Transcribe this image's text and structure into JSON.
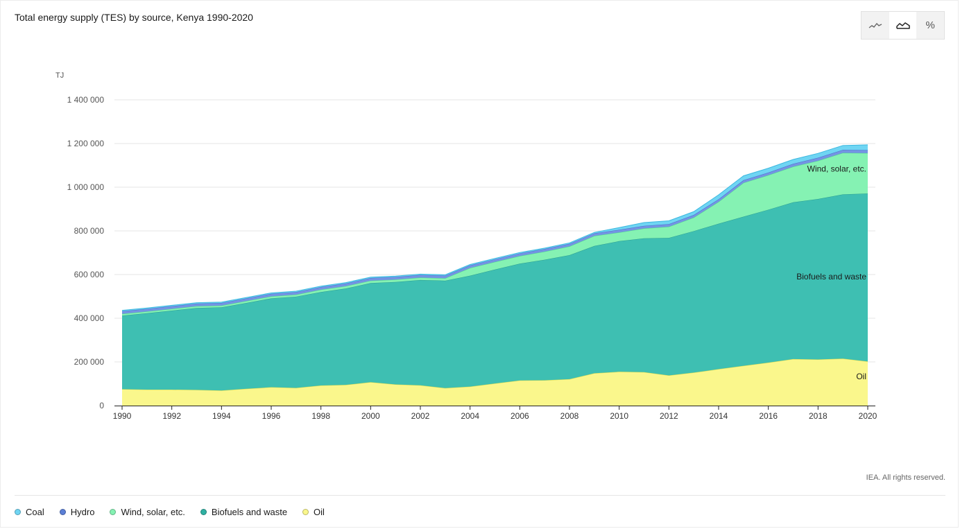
{
  "title": "Total energy supply (TES) by source, Kenya 1990-2020",
  "toggles": [
    {
      "name": "line-chart-icon",
      "active": false
    },
    {
      "name": "area-chart-icon",
      "active": true
    },
    {
      "name": "percent-icon",
      "label": "%",
      "active": false
    }
  ],
  "copyright": "IEA. All rights reserved.",
  "chart_data": {
    "type": "area",
    "stacked": true,
    "title": "Total energy supply (TES) by source, Kenya 1990-2020",
    "ylabel": "TJ",
    "ylim": [
      0,
      1400000
    ],
    "yticks": [
      0,
      200000,
      400000,
      600000,
      800000,
      1000000,
      1200000,
      1400000
    ],
    "ytick_labels": [
      "0",
      "200 000",
      "400 000",
      "600 000",
      "800 000",
      "1 000 000",
      "1 200 000",
      "1 400 000"
    ],
    "xticks": [
      1990,
      1992,
      1994,
      1996,
      1998,
      2000,
      2002,
      2004,
      2006,
      2008,
      2010,
      2012,
      2014,
      2016,
      2018,
      2020
    ],
    "grid": true,
    "legend_position": "bottom",
    "x": [
      1990,
      1991,
      1992,
      1993,
      1994,
      1995,
      1996,
      1997,
      1998,
      1999,
      2000,
      2001,
      2002,
      2003,
      2004,
      2005,
      2006,
      2007,
      2008,
      2009,
      2010,
      2011,
      2012,
      2013,
      2014,
      2015,
      2016,
      2017,
      2018,
      2019,
      2020
    ],
    "series": [
      {
        "name": "Oil",
        "color": "#faf78c",
        "line": "#e0dc4a",
        "values": [
          75000,
          73000,
          73000,
          72000,
          69000,
          77000,
          84000,
          81000,
          92000,
          95000,
          107000,
          97000,
          93000,
          80000,
          87000,
          101000,
          115000,
          116000,
          121000,
          148000,
          155000,
          153000,
          138000,
          151000,
          167000,
          182000,
          197000,
          213000,
          211000,
          215000,
          202000
        ]
      },
      {
        "name": "Biofuels and waste",
        "color": "#3ebfb2",
        "line": "#2a9d90",
        "values": [
          337000,
          350000,
          362000,
          375000,
          381000,
          393000,
          407000,
          418000,
          428000,
          441000,
          454000,
          469000,
          482000,
          492000,
          508000,
          522000,
          535000,
          552000,
          568000,
          583000,
          598000,
          613000,
          630000,
          648000,
          666000,
          683000,
          700000,
          718000,
          735000,
          752000,
          769000
        ]
      },
      {
        "name": "Wind, solar, etc.",
        "color": "#85f2b3",
        "line": "#4fd98b",
        "values": [
          8000,
          8000,
          8000,
          8000,
          8000,
          9000,
          9000,
          9000,
          11000,
          11000,
          11000,
          11000,
          11000,
          11000,
          35000,
          35000,
          35000,
          37000,
          40000,
          46000,
          40000,
          45000,
          51000,
          62000,
          100000,
          155000,
          158000,
          163000,
          175000,
          190000,
          185000
        ]
      },
      {
        "name": "Hydro",
        "color": "#7494e3",
        "line": "#4a6bc9",
        "values": [
          12000,
          12000,
          12000,
          12000,
          12000,
          12000,
          12000,
          12000,
          12000,
          12000,
          12000,
          12000,
          12000,
          12000,
          12000,
          12000,
          12000,
          12000,
          12000,
          12000,
          12000,
          12000,
          12000,
          12000,
          12000,
          12000,
          12000,
          13000,
          14000,
          14000,
          14000
        ]
      },
      {
        "name": "Coal",
        "color": "#6fd5f3",
        "line": "#3bb8df",
        "values": [
          4000,
          4000,
          4000,
          4000,
          4000,
          4000,
          4000,
          4000,
          4000,
          4000,
          4000,
          4000,
          4000,
          4000,
          4000,
          4000,
          4000,
          4000,
          4000,
          4000,
          10000,
          15000,
          15000,
          15000,
          20000,
          20000,
          20000,
          20000,
          20000,
          20000,
          24000
        ]
      }
    ],
    "annotations": [
      {
        "text": "Wind, solar, etc.",
        "series": "Wind, solar, etc."
      },
      {
        "text": "Biofuels and waste",
        "series": "Biofuels and waste"
      },
      {
        "text": "Oil",
        "series": "Oil"
      }
    ]
  },
  "legend": [
    {
      "label": "Coal",
      "color": "#6fd5f3"
    },
    {
      "label": "Hydro",
      "color": "#5b7fd6"
    },
    {
      "label": "Wind, solar, etc.",
      "color": "#85f2b3"
    },
    {
      "label": "Biofuels and waste",
      "color": "#2fb0a2"
    },
    {
      "label": "Oil",
      "color": "#faf78c"
    }
  ]
}
